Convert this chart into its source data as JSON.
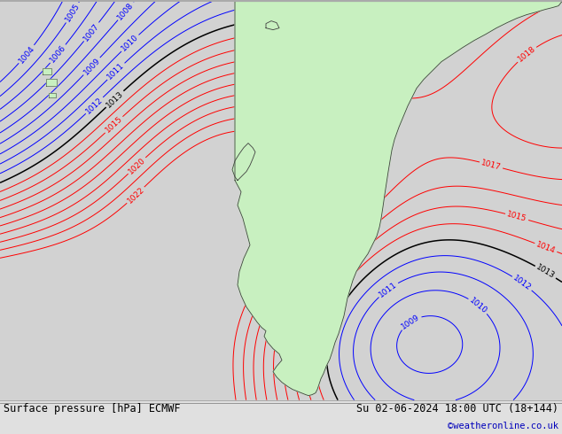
{
  "title_left": "Surface pressure [hPa] ECMWF",
  "title_right": "Su 02-06-2024 18:00 UTC (18+144)",
  "credit": "©weatheronline.co.uk",
  "bg_color": "#d2d2d2",
  "land_color": "#c8f0c0",
  "blue_color": "#0000ff",
  "red_color": "#ff0000",
  "black_color": "#000000",
  "border_color": "#404040",
  "label_fs": 6.5,
  "title_fs": 8.5,
  "credit_color": "#0000bb",
  "figsize": [
    6.34,
    4.9
  ],
  "dpi": 100,
  "lw_thin": 0.7,
  "lw_black": 1.1
}
